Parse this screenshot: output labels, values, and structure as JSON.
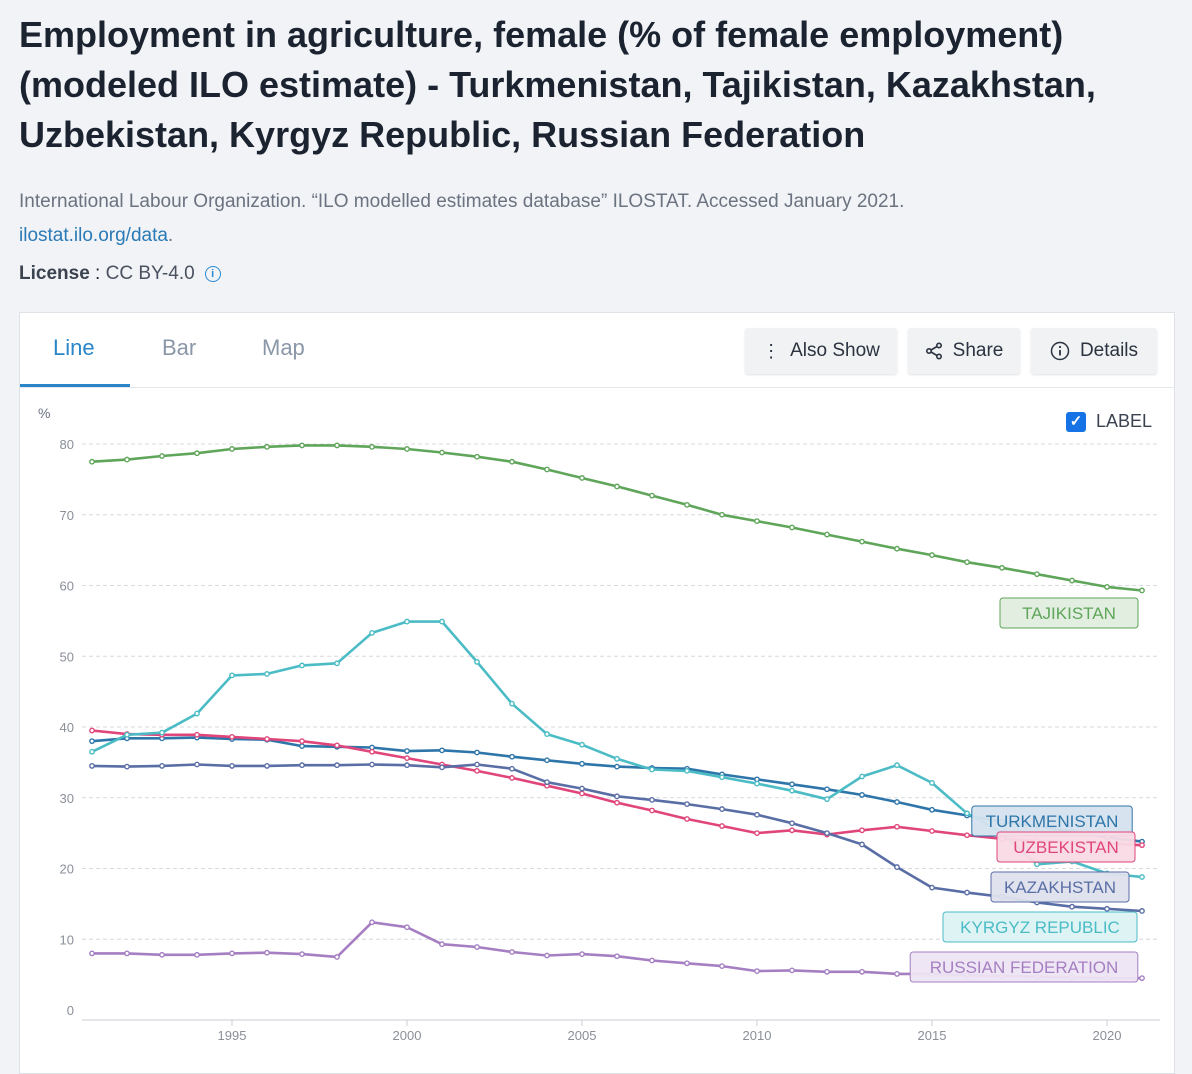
{
  "header": {
    "title": "Employment in agriculture, female (% of female employment) (modeled ILO estimate) - Turkmenistan, Tajikistan, Kazakhstan, Uzbekistan, Kyrgyz Republic, Russian Federation",
    "source": "International Labour Organization. “ILO modelled estimates database” ILOSTAT. Accessed January 2021.",
    "link": "ilostat.ilo.org/data",
    "link_suffix": ".",
    "license_label": "License",
    "license_sep": " : ",
    "license_value": "CC BY-4.0",
    "info_icon": "i"
  },
  "tabs": [
    {
      "label": "Line",
      "active": true
    },
    {
      "label": "Bar",
      "active": false
    },
    {
      "label": "Map",
      "active": false
    }
  ],
  "buttons": {
    "also_show": "Also Show",
    "share": "Share",
    "details": "Details"
  },
  "label_toggle": {
    "label": "LABEL",
    "checked": true
  },
  "chart_data": {
    "type": "line",
    "ylabel": "%",
    "ylim": [
      0,
      80
    ],
    "yticks": [
      "0",
      "10",
      "20",
      "30",
      "40",
      "50",
      "60",
      "70",
      "80"
    ],
    "xticks": [
      "1995",
      "2000",
      "2005",
      "2010",
      "2015",
      "2020"
    ],
    "x": [
      1991,
      1992,
      1993,
      1994,
      1995,
      1996,
      1997,
      1998,
      1999,
      2000,
      2001,
      2002,
      2003,
      2004,
      2005,
      2006,
      2007,
      2008,
      2009,
      2010,
      2011,
      2012,
      2013,
      2014,
      2015,
      2016,
      2017,
      2018,
      2019,
      2020,
      2021
    ],
    "series": [
      {
        "name": "TAJIKISTAN",
        "color": "#5fa55a",
        "values": [
          77.5,
          77.8,
          78.3,
          78.7,
          79.3,
          79.6,
          79.8,
          79.8,
          79.6,
          79.3,
          78.8,
          78.2,
          77.5,
          76.4,
          75.2,
          74.0,
          72.7,
          71.4,
          70.0,
          69.1,
          68.2,
          67.2,
          66.2,
          65.2,
          64.3,
          63.3,
          62.5,
          61.6,
          60.7,
          59.8,
          59.3
        ]
      },
      {
        "name": "TURKMENISTAN",
        "color": "#2e75a9",
        "values": [
          38.0,
          38.4,
          38.4,
          38.5,
          38.3,
          38.2,
          37.3,
          37.2,
          37.1,
          36.6,
          36.7,
          36.4,
          35.8,
          35.3,
          34.8,
          34.4,
          34.2,
          34.1,
          33.3,
          32.6,
          31.9,
          31.2,
          30.4,
          29.4,
          28.3,
          27.5,
          26.6,
          26.0,
          25.2,
          24.4,
          23.8
        ]
      },
      {
        "name": "UZBEKISTAN",
        "color": "#e0457b",
        "values": [
          39.5,
          39.0,
          38.9,
          38.9,
          38.6,
          38.3,
          38.0,
          37.4,
          36.5,
          35.6,
          34.7,
          33.8,
          32.8,
          31.7,
          30.6,
          29.3,
          28.2,
          27.0,
          26.0,
          25.0,
          25.4,
          24.8,
          25.4,
          25.9,
          25.3,
          24.7,
          24.2,
          23.9,
          23.7,
          23.5,
          23.3
        ]
      },
      {
        "name": "KAZAKHSTAN",
        "color": "#5a6ea6",
        "values": [
          34.5,
          34.4,
          34.5,
          34.7,
          34.5,
          34.5,
          34.6,
          34.6,
          34.7,
          34.6,
          34.3,
          34.7,
          34.1,
          32.2,
          31.3,
          30.2,
          29.7,
          29.1,
          28.4,
          27.6,
          26.4,
          25.0,
          23.4,
          20.2,
          17.3,
          16.6,
          16.0,
          15.2,
          14.6,
          14.3,
          14.0
        ]
      },
      {
        "name": "KYRGYZ REPUBLIC",
        "color": "#4bbcc5",
        "values": [
          36.5,
          38.9,
          39.2,
          41.9,
          47.3,
          47.5,
          48.7,
          49.0,
          53.3,
          54.9,
          54.9,
          49.2,
          43.3,
          39.0,
          37.5,
          35.5,
          34.0,
          33.8,
          32.9,
          32.0,
          31.0,
          29.8,
          33.0,
          34.6,
          32.1,
          27.8,
          25.0,
          20.6,
          21.0,
          19.3,
          18.8
        ]
      },
      {
        "name": "RUSSIAN FEDERATION",
        "color": "#a57fc2",
        "values": [
          8.0,
          8.0,
          7.8,
          7.8,
          8.0,
          8.1,
          7.9,
          7.5,
          12.4,
          11.7,
          9.3,
          8.9,
          8.2,
          7.7,
          7.9,
          7.6,
          7.0,
          6.6,
          6.2,
          5.5,
          5.6,
          5.4,
          5.4,
          5.1,
          5.1,
          4.9,
          4.8,
          4.7,
          4.6,
          4.5,
          4.5
        ]
      }
    ]
  }
}
